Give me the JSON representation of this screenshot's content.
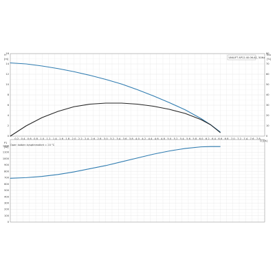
{
  "chart_data": [
    {
      "type": "line",
      "title": "UNILIFT AP12.40.06.A1, 50Hz",
      "xlabel": "Q [l/s]",
      "ylabel_left": "H",
      "ylabel_left_unit": "[m]",
      "ylabel_right": "Eta",
      "ylabel_right_unit": "[%]",
      "xlim": [
        0,
        8.0
      ],
      "ylim_left": [
        0,
        16
      ],
      "ylim_right": [
        0,
        80
      ],
      "x_ticks": [
        "0.2",
        "0.4",
        "0.6",
        "0.8",
        "1.0",
        "1.2",
        "1.4",
        "1.6",
        "1.8",
        "2.0",
        "2.2",
        "2.4",
        "2.6",
        "2.8",
        "3.0",
        "3.2",
        "3.4",
        "3.6",
        "3.8",
        "4.0",
        "4.2",
        "4.4",
        "4.6",
        "4.8",
        "5.0",
        "5.2",
        "5.4",
        "5.6",
        "5.8",
        "6.0",
        "6.2",
        "6.4",
        "6.6",
        "6.8",
        "7.0",
        "7.2",
        "7.4",
        "7.6",
        "7.8"
      ],
      "y_ticks_left": [
        "0",
        "2",
        "4",
        "6",
        "8",
        "10",
        "12",
        "14",
        "16"
      ],
      "y_ticks_right": [
        "0",
        "10",
        "20",
        "30",
        "40",
        "50",
        "60",
        "70",
        "80"
      ],
      "grid": true,
      "note": "Open kolben kysgtinmalket = 20 °C",
      "series": [
        {
          "color": "#2e7bb0",
          "axis": "left",
          "x": [
            0,
            0.5,
            1.0,
            1.5,
            2.0,
            2.5,
            3.0,
            3.5,
            4.0,
            4.5,
            5.0,
            5.5,
            6.0,
            6.3,
            6.6
          ],
          "y": [
            14.2,
            14.0,
            13.6,
            13.1,
            12.5,
            11.8,
            11.0,
            10.1,
            9.0,
            7.8,
            6.5,
            5.1,
            3.4,
            2.2,
            0.8
          ]
        },
        {
          "color": "#222222",
          "axis": "right",
          "x": [
            0,
            0.5,
            1.0,
            1.5,
            2.0,
            2.5,
            3.0,
            3.5,
            4.0,
            4.5,
            5.0,
            5.5,
            6.0,
            6.3,
            6.6
          ],
          "y": [
            0,
            10,
            18,
            24,
            28.5,
            31,
            32,
            32,
            31,
            29,
            26,
            22,
            16,
            11,
            3.5
          ]
        }
      ]
    },
    {
      "type": "line",
      "title": "",
      "xlabel": "",
      "ylabel": "P1",
      "ylabel_unit": "[W]",
      "xlim": [
        0,
        8.0
      ],
      "ylim": [
        0,
        1300
      ],
      "y_ticks": [
        "0",
        "100",
        "200",
        "300",
        "400",
        "500",
        "600",
        "700",
        "800",
        "900",
        "1000",
        "1100",
        "1200"
      ],
      "grid": true,
      "series": [
        {
          "color": "#2e7bb0",
          "x": [
            0,
            0.5,
            1.0,
            1.5,
            2.0,
            2.5,
            3.0,
            3.5,
            4.0,
            4.5,
            5.0,
            5.5,
            6.0,
            6.3,
            6.6
          ],
          "y": [
            690,
            700,
            720,
            750,
            790,
            840,
            890,
            950,
            1010,
            1070,
            1120,
            1160,
            1185,
            1190,
            1190
          ]
        }
      ]
    }
  ]
}
